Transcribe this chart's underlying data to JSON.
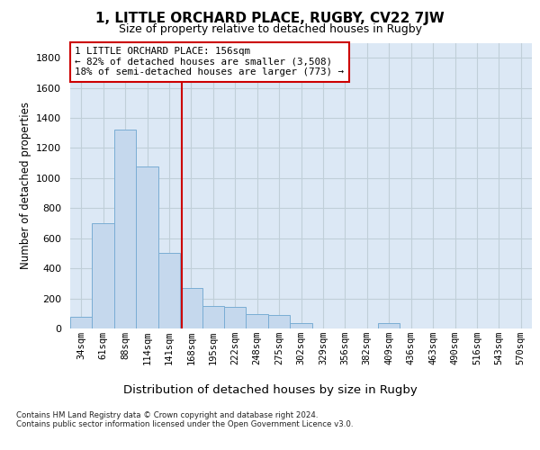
{
  "title": "1, LITTLE ORCHARD PLACE, RUGBY, CV22 7JW",
  "subtitle": "Size of property relative to detached houses in Rugby",
  "xlabel": "Distribution of detached houses by size in Rugby",
  "ylabel": "Number of detached properties",
  "bar_labels": [
    "34sqm",
    "61sqm",
    "88sqm",
    "114sqm",
    "141sqm",
    "168sqm",
    "195sqm",
    "222sqm",
    "248sqm",
    "275sqm",
    "302sqm",
    "329sqm",
    "356sqm",
    "382sqm",
    "409sqm",
    "436sqm",
    "463sqm",
    "490sqm",
    "516sqm",
    "543sqm",
    "570sqm"
  ],
  "bar_values": [
    80,
    700,
    1325,
    1075,
    500,
    270,
    150,
    145,
    95,
    90,
    35,
    0,
    0,
    0,
    35,
    0,
    0,
    0,
    0,
    0,
    0
  ],
  "bar_color": "#c5d8ed",
  "bar_edgecolor": "#7aadd4",
  "vline_color": "#cc0000",
  "ylim": [
    0,
    1900
  ],
  "yticks": [
    0,
    200,
    400,
    600,
    800,
    1000,
    1200,
    1400,
    1600,
    1800
  ],
  "annotation_text": "1 LITTLE ORCHARD PLACE: 156sqm\n← 82% of detached houses are smaller (3,508)\n18% of semi-detached houses are larger (773) →",
  "annotation_box_color": "#ffffff",
  "annotation_box_edgecolor": "#cc0000",
  "footer_line1": "Contains HM Land Registry data © Crown copyright and database right 2024.",
  "footer_line2": "Contains public sector information licensed under the Open Government Licence v3.0.",
  "plot_bg_color": "#dce8f5",
  "grid_color": "#c0cfd8"
}
